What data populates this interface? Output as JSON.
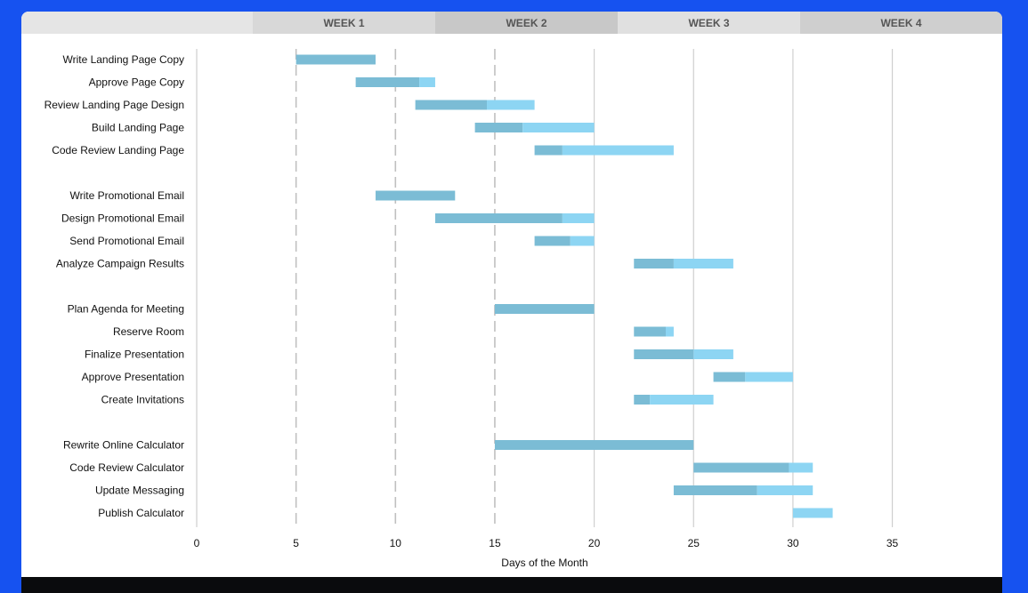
{
  "header": {
    "weeks": [
      "WEEK 1",
      "WEEK 2",
      "WEEK 3",
      "WEEK 4"
    ]
  },
  "colors": {
    "background": "#1652f0",
    "bar_progress": "#7bbcd5",
    "bar_remaining": "#8dd5f3",
    "footer": "#0a0b0d"
  },
  "chart_data": {
    "type": "bar",
    "orientation": "horizontal-gantt",
    "xlabel": "Days of the Month",
    "xlim": [
      0,
      40
    ],
    "xticks": [
      0,
      5,
      10,
      15,
      20,
      25,
      30,
      35
    ],
    "tasks": [
      {
        "name": "Write Landing Page Copy",
        "start": 5,
        "done": 4,
        "remaining": 0
      },
      {
        "name": "Approve Page Copy",
        "start": 8,
        "done": 3.2,
        "remaining": 0.8
      },
      {
        "name": "Review Landing Page Design",
        "start": 11,
        "done": 3.6,
        "remaining": 2.4
      },
      {
        "name": "Build Landing Page",
        "start": 14,
        "done": 2.4,
        "remaining": 3.6
      },
      {
        "name": "Code Review Landing Page",
        "start": 17,
        "done": 1.4,
        "remaining": 5.6
      },
      {
        "name": "",
        "start": null,
        "done": 0,
        "remaining": 0
      },
      {
        "name": "Write Promotional Email",
        "start": 9,
        "done": 4,
        "remaining": 0
      },
      {
        "name": "Design Promotional Email",
        "start": 12,
        "done": 6.4,
        "remaining": 1.6
      },
      {
        "name": "Send Promotional Email",
        "start": 17,
        "done": 1.8,
        "remaining": 1.2
      },
      {
        "name": "Analyze Campaign Results",
        "start": 22,
        "done": 2,
        "remaining": 3
      },
      {
        "name": "",
        "start": null,
        "done": 0,
        "remaining": 0
      },
      {
        "name": "Plan Agenda for Meeting",
        "start": 15,
        "done": 5,
        "remaining": 0
      },
      {
        "name": "Reserve Room",
        "start": 22,
        "done": 1.6,
        "remaining": 0.4
      },
      {
        "name": "Finalize Presentation",
        "start": 22,
        "done": 3,
        "remaining": 2
      },
      {
        "name": "Approve Presentation",
        "start": 26,
        "done": 1.6,
        "remaining": 2.4
      },
      {
        "name": "Create Invitations",
        "start": 22,
        "done": 0.8,
        "remaining": 3.2
      },
      {
        "name": "",
        "start": null,
        "done": 0,
        "remaining": 0
      },
      {
        "name": "Rewrite Online Calculator",
        "start": 15,
        "done": 10,
        "remaining": 0
      },
      {
        "name": "Code Review Calculator",
        "start": 25,
        "done": 4.8,
        "remaining": 1.2
      },
      {
        "name": "Update Messaging",
        "start": 24,
        "done": 4.2,
        "remaining": 2.8
      },
      {
        "name": "Publish Calculator",
        "start": 30,
        "done": 0,
        "remaining": 2
      }
    ]
  }
}
